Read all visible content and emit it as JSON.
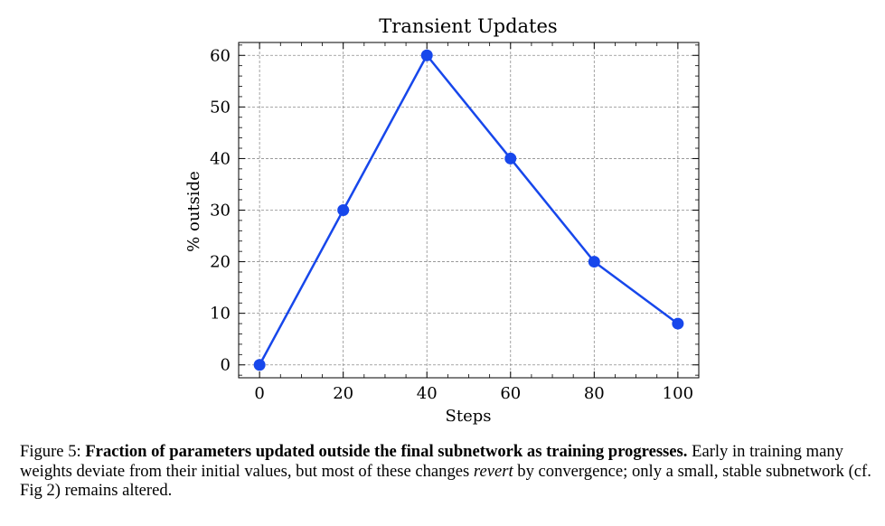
{
  "chart_data": {
    "type": "line",
    "title": "Transient Updates",
    "xlabel": "Steps",
    "ylabel": "% outside",
    "x": [
      0,
      20,
      40,
      60,
      80,
      100
    ],
    "series": [
      {
        "values": [
          0,
          30,
          60,
          40,
          20,
          8
        ]
      }
    ],
    "xticks": [
      "0",
      "20",
      "40",
      "60",
      "80",
      "100"
    ],
    "yticks": [
      "0",
      "10",
      "20",
      "30",
      "40",
      "50",
      "60"
    ],
    "xlim": [
      -5,
      105
    ],
    "ylim": [
      -2.5,
      62.5
    ],
    "grid": true,
    "line_color": "#1747eb",
    "marker_color": "#1747eb",
    "grid_color": "#8c8c8c"
  },
  "caption": {
    "label": "Figure 5:",
    "bold": "Fraction of parameters updated outside the final subnetwork as training progresses.",
    "text1": "Early in training many weights deviate from their initial values, but most of these changes",
    "italic": "revert",
    "text2": "by convergence; only a small, stable subnetwork (cf. Fig 2) remains altered."
  }
}
